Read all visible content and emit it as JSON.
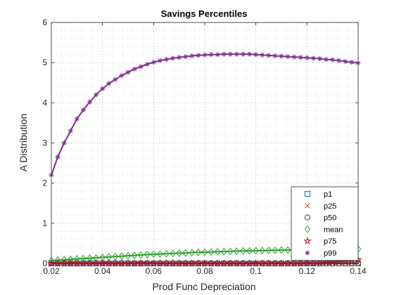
{
  "chart_data": {
    "type": "line",
    "title": "Savings Percentiles",
    "xlabel": "Prod Func Depreciation",
    "ylabel": "A Distribution",
    "xlim": [
      0.02,
      0.14
    ],
    "ylim": [
      0,
      6
    ],
    "xticks": [
      0.02,
      0.04,
      0.06,
      0.08,
      0.1,
      0.12,
      0.14
    ],
    "xtick_labels": [
      "0.02",
      "0.04",
      "0.06",
      "0.08",
      "0.1",
      "0.12",
      "0.14"
    ],
    "yticks": [
      0,
      1,
      2,
      3,
      4,
      5,
      6
    ],
    "ytick_labels": [
      "0",
      "1",
      "2",
      "3",
      "4",
      "5",
      "6"
    ],
    "grid": true,
    "minor_grid": true,
    "legend_position": "bottom-right",
    "x": [
      0.02,
      0.0225,
      0.025,
      0.0275,
      0.03,
      0.0325,
      0.035,
      0.0375,
      0.04,
      0.0425,
      0.045,
      0.0475,
      0.05,
      0.0525,
      0.055,
      0.0575,
      0.06,
      0.0625,
      0.065,
      0.0675,
      0.07,
      0.0725,
      0.075,
      0.0775,
      0.08,
      0.0825,
      0.085,
      0.0875,
      0.09,
      0.0925,
      0.095,
      0.0975,
      0.1,
      0.1025,
      0.105,
      0.1075,
      0.11,
      0.1125,
      0.115,
      0.1175,
      0.12,
      0.1225,
      0.125,
      0.1275,
      0.13,
      0.1325,
      0.135,
      0.1375,
      0.14
    ],
    "series": [
      {
        "name": "p1",
        "color": "#0072BD",
        "marker": "square",
        "values": [
          0,
          0,
          0,
          0,
          0,
          0,
          0,
          0,
          0,
          0,
          0,
          0,
          0,
          0,
          0,
          0,
          0,
          0,
          0,
          0,
          0,
          0,
          0,
          0,
          0,
          0,
          0,
          0,
          0,
          0,
          0,
          0,
          0,
          0,
          0,
          0,
          0,
          0,
          0,
          0,
          0,
          0,
          0,
          0,
          0,
          0,
          0,
          0,
          0
        ]
      },
      {
        "name": "p25",
        "color": "#D95319",
        "marker": "x",
        "values": [
          0,
          0,
          0,
          0,
          0,
          0,
          0,
          0,
          0,
          0,
          0,
          0,
          0,
          0,
          0,
          0,
          0,
          0,
          0,
          0,
          0,
          0,
          0,
          0,
          0,
          0,
          0,
          0,
          0,
          0,
          0,
          0,
          0,
          0,
          0,
          0,
          0,
          0,
          0,
          0,
          0,
          0,
          0,
          0,
          0,
          0,
          0,
          0,
          0
        ]
      },
      {
        "name": "p50",
        "color": "#404040",
        "marker": "circle",
        "values": [
          0,
          0,
          0,
          0,
          0,
          0,
          0,
          0,
          0,
          0,
          0,
          0,
          0,
          0,
          0,
          0,
          0,
          0,
          0,
          0,
          0,
          0,
          0,
          0,
          0,
          0,
          0,
          0,
          0,
          0,
          0,
          0,
          0,
          0,
          0,
          0,
          0,
          0,
          0,
          0,
          0,
          0,
          0,
          0,
          0,
          0,
          0,
          0,
          0
        ]
      },
      {
        "name": "mean",
        "color": "#2CA02C",
        "marker": "diamond",
        "values": [
          0.07,
          0.08,
          0.09,
          0.1,
          0.11,
          0.12,
          0.13,
          0.14,
          0.15,
          0.16,
          0.17,
          0.18,
          0.19,
          0.2,
          0.21,
          0.22,
          0.23,
          0.235,
          0.24,
          0.25,
          0.255,
          0.26,
          0.27,
          0.275,
          0.28,
          0.285,
          0.29,
          0.295,
          0.3,
          0.305,
          0.31,
          0.313,
          0.316,
          0.32,
          0.323,
          0.326,
          0.33,
          0.333,
          0.336,
          0.34,
          0.342,
          0.344,
          0.346,
          0.348,
          0.35,
          0.352,
          0.354,
          0.356,
          0.358
        ]
      },
      {
        "name": "p75",
        "color": "#A2142F",
        "marker": "star",
        "values": [
          0,
          0,
          0,
          0,
          0,
          0,
          0,
          0,
          0,
          0,
          0,
          0,
          0,
          0,
          0,
          0,
          0,
          0,
          0,
          0,
          0,
          0,
          0,
          0,
          0,
          0,
          0,
          0,
          0,
          0,
          0,
          0,
          0,
          0,
          0,
          0,
          0,
          0,
          0,
          0,
          0,
          0,
          0.01,
          0.02,
          0.03,
          0.045,
          0.06,
          0.075,
          0.09
        ]
      },
      {
        "name": "p99",
        "color": "#7E2F8E",
        "marker": "asterisk",
        "values": [
          2.2,
          2.65,
          3.0,
          3.3,
          3.6,
          3.82,
          4.02,
          4.2,
          4.35,
          4.48,
          4.58,
          4.68,
          4.76,
          4.84,
          4.9,
          4.96,
          5.01,
          5.05,
          5.08,
          5.11,
          5.13,
          5.15,
          5.17,
          5.18,
          5.19,
          5.2,
          5.2,
          5.21,
          5.21,
          5.21,
          5.21,
          5.21,
          5.2,
          5.19,
          5.18,
          5.17,
          5.16,
          5.15,
          5.14,
          5.13,
          5.12,
          5.11,
          5.1,
          5.08,
          5.07,
          5.05,
          5.03,
          5.01,
          4.99
        ]
      }
    ]
  }
}
